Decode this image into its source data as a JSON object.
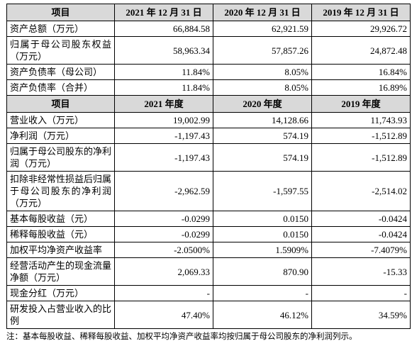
{
  "table": {
    "sections": [
      {
        "header": [
          "项目",
          "2021 年 12 月 31 日",
          "2020 年 12 月 31 日",
          "2019 年 12 月 31 日"
        ],
        "rows": [
          [
            "资产总额（万元）",
            "66,884.58",
            "62,921.59",
            "29,926.72"
          ],
          [
            "归属于母公司股东权益（万元）",
            "58,963.34",
            "57,857.26",
            "24,872.48"
          ],
          [
            "资产负债率（母公司）",
            "11.84%",
            "8.05%",
            "16.84%"
          ],
          [
            "资产负债率（合并）",
            "11.84%",
            "8.05%",
            "16.89%"
          ]
        ]
      },
      {
        "header": [
          "项目",
          "2021 年度",
          "2020 年度",
          "2019 年度"
        ],
        "rows": [
          [
            "营业收入（万元）",
            "19,002.99",
            "14,128.66",
            "11,743.93"
          ],
          [
            "净利润（万元）",
            "-1,197.43",
            "574.19",
            "-1,512.89"
          ],
          [
            "归属于母公司股东的净利润（万元）",
            "-1,197.43",
            "574.19",
            "-1,512.89"
          ],
          [
            "扣除非经常性损益后归属于母公司股东的净利润（万元）",
            "-2,962.59",
            "-1,597.55",
            "-2,514.02"
          ],
          [
            "基本每股收益（元）",
            "-0.0299",
            "0.0150",
            "-0.0424"
          ],
          [
            "稀释每股收益（元）",
            "-0.0299",
            "0.0150",
            "-0.0424"
          ],
          [
            "加权平均净资产收益率",
            "-2.0500%",
            "1.5909%",
            "-7.4079%"
          ],
          [
            "经营活动产生的现金流量净额（万元）",
            "2,069.33",
            "870.90",
            "-15.33"
          ],
          [
            "现金分红（万元）",
            "-",
            "-",
            "-"
          ],
          [
            "研发投入占营业收入的比例",
            "47.40%",
            "46.12%",
            "34.59%"
          ]
        ]
      }
    ],
    "note": "注：基本每股收益、稀释每股收益、加权平均净资产收益率均按归属于母公司股东的净利润列示。"
  }
}
